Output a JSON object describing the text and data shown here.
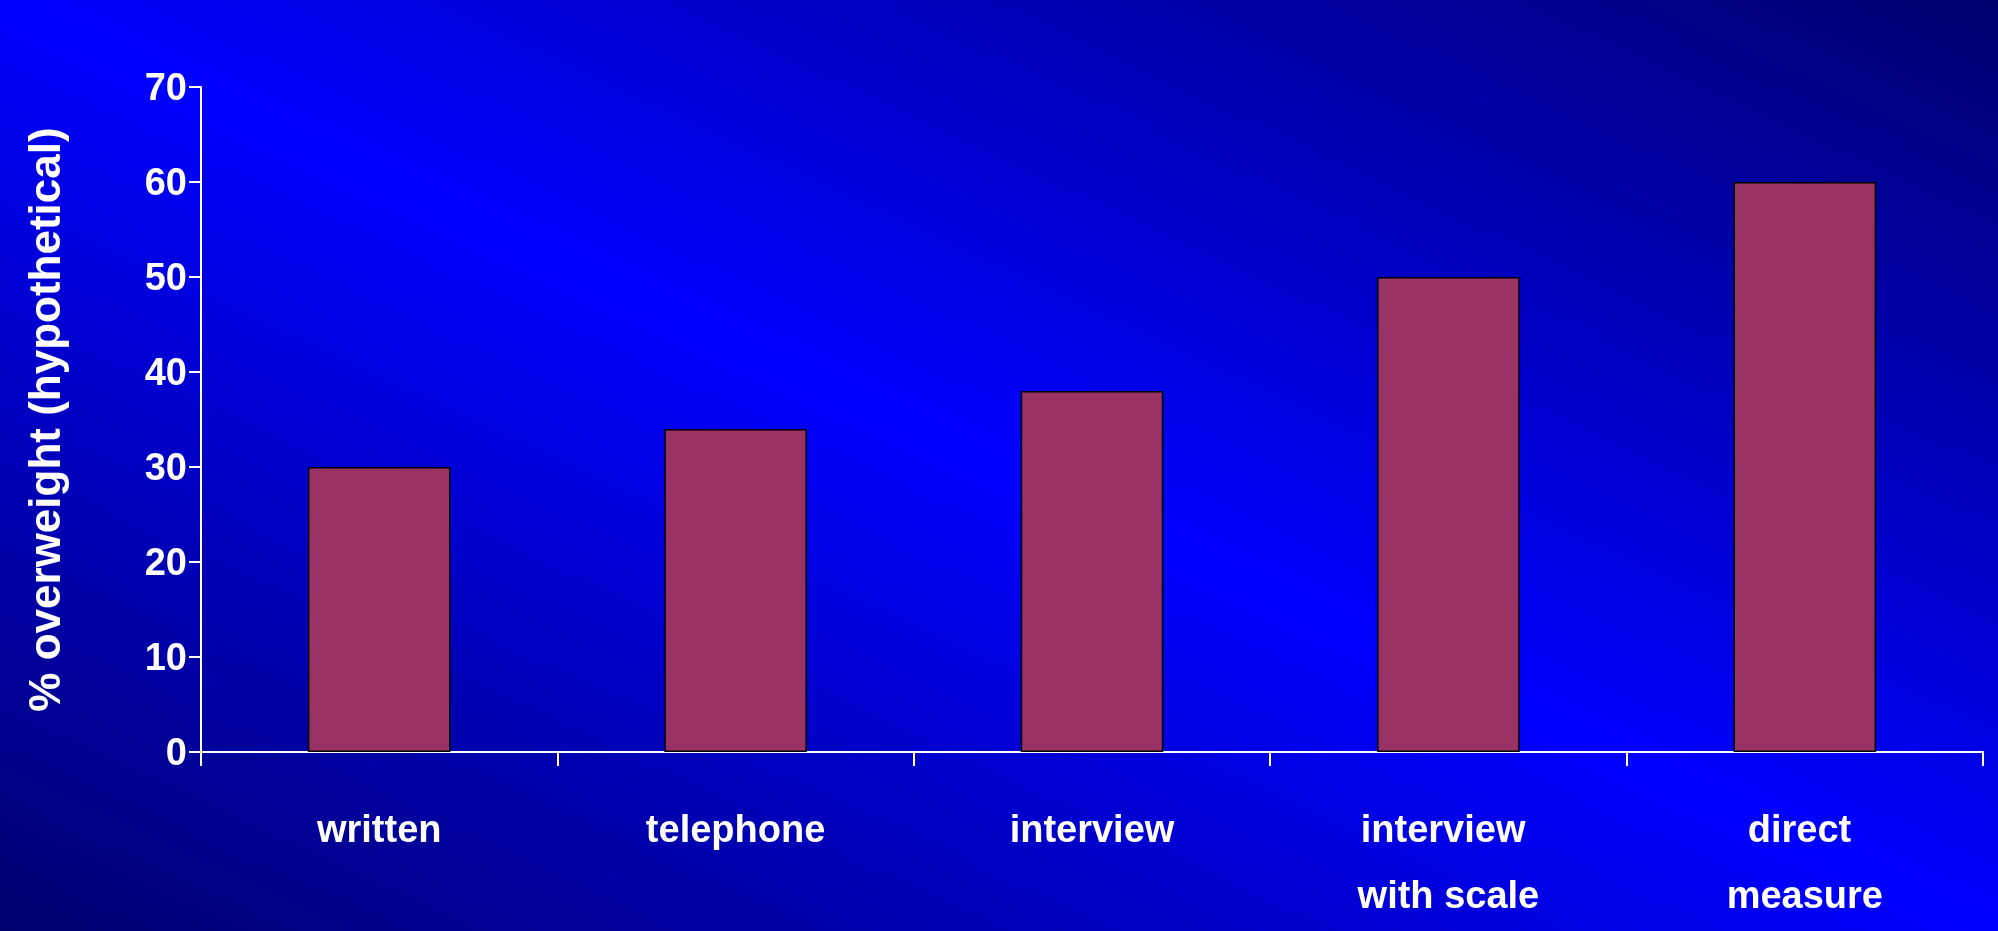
{
  "chart_data": {
    "type": "bar",
    "ylabel": "% overweight (hypothetical)",
    "categories": [
      "written",
      "telephone",
      "interview",
      "interview with scale",
      "direct measure"
    ],
    "values": [
      30,
      34,
      38,
      50,
      60
    ],
    "color": "#993366",
    "ylim": [
      0,
      70
    ],
    "yticks": [
      0,
      10,
      20,
      30,
      40,
      50,
      60,
      70
    ],
    "grid": false
  }
}
